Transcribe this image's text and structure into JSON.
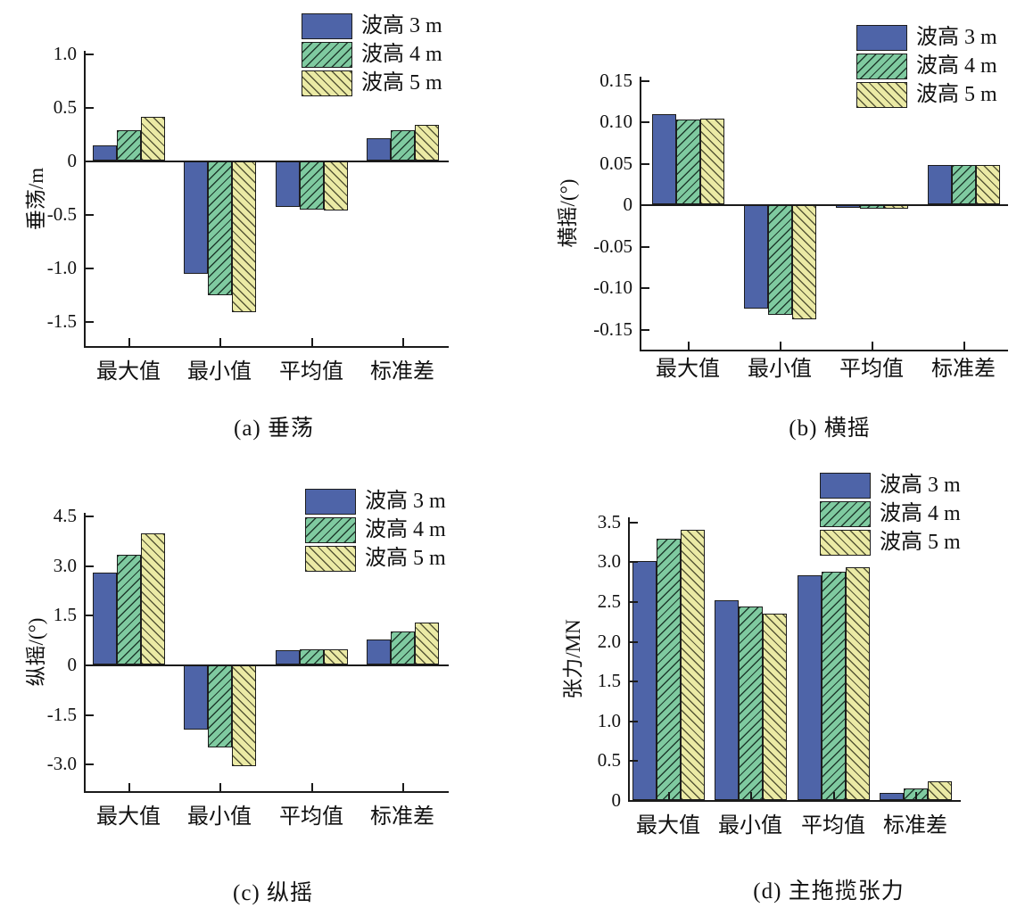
{
  "figure": {
    "colors": {
      "series_blue": "#4e64a8",
      "series_green": "#7fcaa0",
      "series_yellow": "#ebeaa5",
      "hatch_green": "#1f3b2d",
      "hatch_yellow": "#565637",
      "axis": "#1a1a1a",
      "text": "#111111",
      "background": "#ffffff"
    },
    "categories": [
      "最大值",
      "最小值",
      "平均值",
      "标准差"
    ],
    "legend_labels": [
      "波高 3 m",
      "波高 4 m",
      "波高 5 m"
    ]
  },
  "chart_data": [
    {
      "id": "a",
      "type": "bar",
      "caption": "(a) 垂荡",
      "ylabel": "垂荡/m",
      "categories": [
        "最大值",
        "最小值",
        "平均值",
        "标准差"
      ],
      "ytick_labels": [
        "1.0",
        "0.5",
        "0",
        "-0.5",
        "-1.0",
        "-1.5"
      ],
      "ytick_values": [
        1.0,
        0.5,
        0,
        -0.5,
        -1.0,
        -1.5
      ],
      "ylim": [
        -1.73,
        1.03
      ],
      "legend_position": "top-right",
      "grid": false,
      "series": [
        {
          "name": "波高 3 m",
          "values": [
            0.14,
            -1.06,
            -0.43,
            0.21
          ]
        },
        {
          "name": "波高 4 m",
          "values": [
            0.28,
            -1.26,
            -0.46,
            0.28
          ]
        },
        {
          "name": "波高 5 m",
          "values": [
            0.41,
            -1.42,
            -0.47,
            0.33
          ]
        }
      ]
    },
    {
      "id": "b",
      "type": "bar",
      "caption": "(b) 横摇",
      "ylabel": "横摇/(°)",
      "categories": [
        "最大值",
        "最小值",
        "平均值",
        "标准差"
      ],
      "ytick_labels": [
        "0.15",
        "0.10",
        "0.05",
        "0",
        "-0.05",
        "-0.10",
        "-0.15"
      ],
      "ytick_values": [
        0.15,
        0.1,
        0.05,
        0,
        -0.05,
        -0.1,
        -0.15
      ],
      "ylim": [
        -0.175,
        0.154
      ],
      "legend_position": "top-right",
      "grid": false,
      "series": [
        {
          "name": "波高 3 m",
          "values": [
            0.109,
            -0.126,
            -0.004,
            0.047
          ]
        },
        {
          "name": "波高 4 m",
          "values": [
            0.102,
            -0.133,
            -0.005,
            0.047
          ]
        },
        {
          "name": "波高 5 m",
          "values": [
            0.103,
            -0.139,
            -0.005,
            0.047
          ]
        }
      ]
    },
    {
      "id": "c",
      "type": "bar",
      "caption": "(c) 纵摇",
      "ylabel": "纵摇/(°)",
      "categories": [
        "最大值",
        "最小值",
        "平均值",
        "标准差"
      ],
      "ytick_labels": [
        "4.5",
        "3.0",
        "1.5",
        "0",
        "-1.5",
        "-3.0"
      ],
      "ytick_values": [
        4.5,
        3.0,
        1.5,
        0,
        -1.5,
        -3.0
      ],
      "ylim": [
        -3.83,
        4.58
      ],
      "legend_position": "top-right",
      "grid": false,
      "series": [
        {
          "name": "波高 3 m",
          "values": [
            2.78,
            -1.97,
            0.43,
            0.76
          ]
        },
        {
          "name": "波高 4 m",
          "values": [
            3.32,
            -2.51,
            0.45,
            1.01
          ]
        },
        {
          "name": "波高 5 m",
          "values": [
            3.95,
            -3.08,
            0.45,
            1.27
          ]
        }
      ]
    },
    {
      "id": "d",
      "type": "bar",
      "caption": "(d) 主拖揽张力",
      "ylabel": "张力/MN",
      "categories": [
        "最大值",
        "最小值",
        "平均值",
        "标准差"
      ],
      "ytick_labels": [
        "3.5",
        "3.0",
        "2.5",
        "2.0",
        "1.5",
        "1.0",
        "0.5",
        "0"
      ],
      "ytick_values": [
        3.5,
        3.0,
        2.5,
        2.0,
        1.5,
        1.0,
        0.5,
        0
      ],
      "ylim": [
        0,
        3.55
      ],
      "legend_position": "top-right",
      "grid": false,
      "series": [
        {
          "name": "波高 3 m",
          "values": [
            3.01,
            2.51,
            2.82,
            0.09
          ]
        },
        {
          "name": "波高 4 m",
          "values": [
            3.29,
            2.43,
            2.87,
            0.15
          ]
        },
        {
          "name": "波高 5 m",
          "values": [
            3.4,
            2.34,
            2.93,
            0.24
          ]
        }
      ]
    }
  ]
}
